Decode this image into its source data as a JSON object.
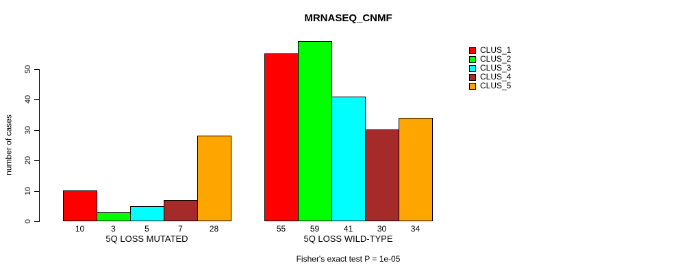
{
  "chart_data": {
    "type": "bar",
    "title": "MRNASEQ_CNMF",
    "ylabel": "number of cases",
    "ylim": [
      0,
      50
    ],
    "yticks": [
      0,
      10,
      20,
      30,
      40,
      50
    ],
    "grid": false,
    "legend_position": "right",
    "bar_value_labels": true,
    "series": [
      {
        "name": "CLUS_1",
        "color": "#FF0000"
      },
      {
        "name": "CLUS_2",
        "color": "#00FF00"
      },
      {
        "name": "CLUS_3",
        "color": "#00FFFF"
      },
      {
        "name": "CLUS_4",
        "color": "#A52A2A"
      },
      {
        "name": "CLUS_5",
        "color": "#FFA500"
      }
    ],
    "groups": [
      {
        "label": "5Q LOSS MUTATED",
        "values": [
          10,
          3,
          5,
          7,
          28
        ]
      },
      {
        "label": "5Q LOSS WILD-TYPE",
        "values": [
          55,
          59,
          41,
          30,
          34
        ]
      }
    ],
    "caption": "Fisher's exact test P = 1e-05",
    "colors": {
      "axis": "#000000",
      "background": "#FFFFFF"
    }
  }
}
